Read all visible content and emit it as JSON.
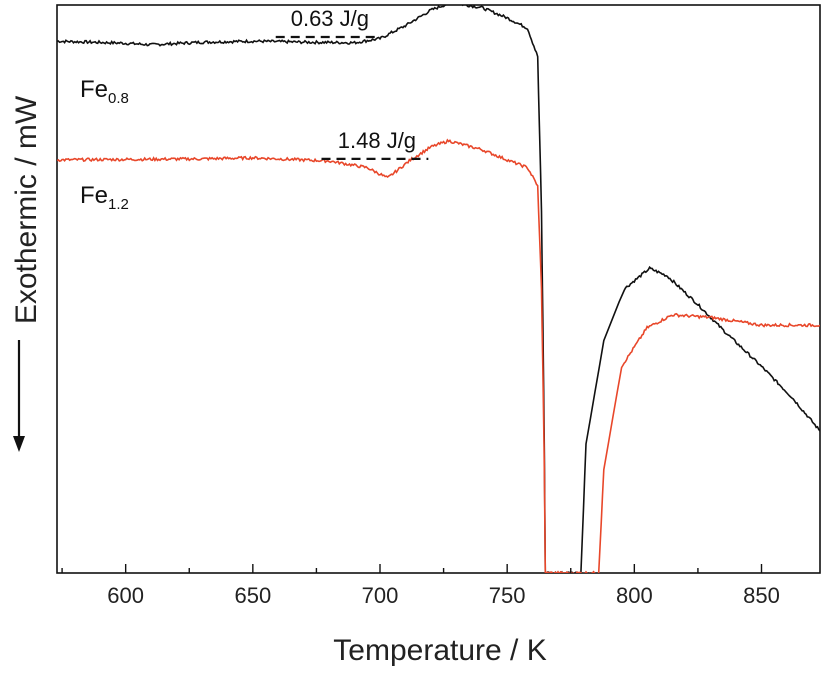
{
  "chart_data": {
    "type": "line",
    "title": "",
    "xlabel": "Temperature  / K",
    "ylabel": "Exothermic / mW",
    "xlim": [
      573,
      873
    ],
    "ylim": [
      -10,
      100
    ],
    "x_ticks": [
      600,
      650,
      700,
      750,
      800,
      850
    ],
    "y_ticks_shown": false,
    "grid": false,
    "legend": "none",
    "series": [
      {
        "name_main": "Fe",
        "name_sub": "0.8",
        "color": "#111111",
        "points": [
          [
            573,
            93
          ],
          [
            600,
            92.6
          ],
          [
            610,
            92.3
          ],
          [
            630,
            92.8
          ],
          [
            650,
            93
          ],
          [
            670,
            92.8
          ],
          [
            690,
            92.7
          ],
          [
            700,
            93.5
          ],
          [
            710,
            96
          ],
          [
            720,
            99
          ],
          [
            728,
            100.5
          ],
          [
            740,
            99.5
          ],
          [
            750,
            97.5
          ],
          [
            758,
            95.5
          ],
          [
            762,
            90
          ],
          [
            763.5,
            60
          ],
          [
            764.5,
            20
          ],
          [
            765,
            -10
          ],
          [
            779,
            -10
          ],
          [
            781,
            15
          ],
          [
            788,
            35
          ],
          [
            796,
            45
          ],
          [
            806,
            49
          ],
          [
            813,
            47.5
          ],
          [
            825,
            42
          ],
          [
            835,
            37
          ],
          [
            850,
            30
          ],
          [
            862,
            24
          ],
          [
            873,
            17.5
          ]
        ]
      },
      {
        "name_main": "Fe",
        "name_sub": "1.2",
        "color": "#e8472a",
        "points": [
          [
            573,
            70
          ],
          [
            600,
            70.1
          ],
          [
            630,
            70.2
          ],
          [
            650,
            70.4
          ],
          [
            680,
            69.8
          ],
          [
            695,
            68.5
          ],
          [
            703,
            66.5
          ],
          [
            712,
            70
          ],
          [
            720,
            72.5
          ],
          [
            727,
            73.7
          ],
          [
            740,
            72
          ],
          [
            750,
            70
          ],
          [
            758,
            68.5
          ],
          [
            762,
            65
          ],
          [
            763.5,
            45
          ],
          [
            764.5,
            15
          ],
          [
            765,
            -10
          ],
          [
            786,
            -10
          ],
          [
            788,
            10
          ],
          [
            795,
            30
          ],
          [
            805,
            37.5
          ],
          [
            815,
            40
          ],
          [
            830,
            39.5
          ],
          [
            850,
            38
          ],
          [
            873,
            38
          ]
        ]
      }
    ],
    "annotations": [
      {
        "text": "0.63 J/g",
        "x1": 659,
        "x2": 700,
        "y": 93.8
      },
      {
        "text": "1.48 J/g",
        "x1": 677,
        "x2": 719,
        "y": 70.2
      }
    ]
  }
}
